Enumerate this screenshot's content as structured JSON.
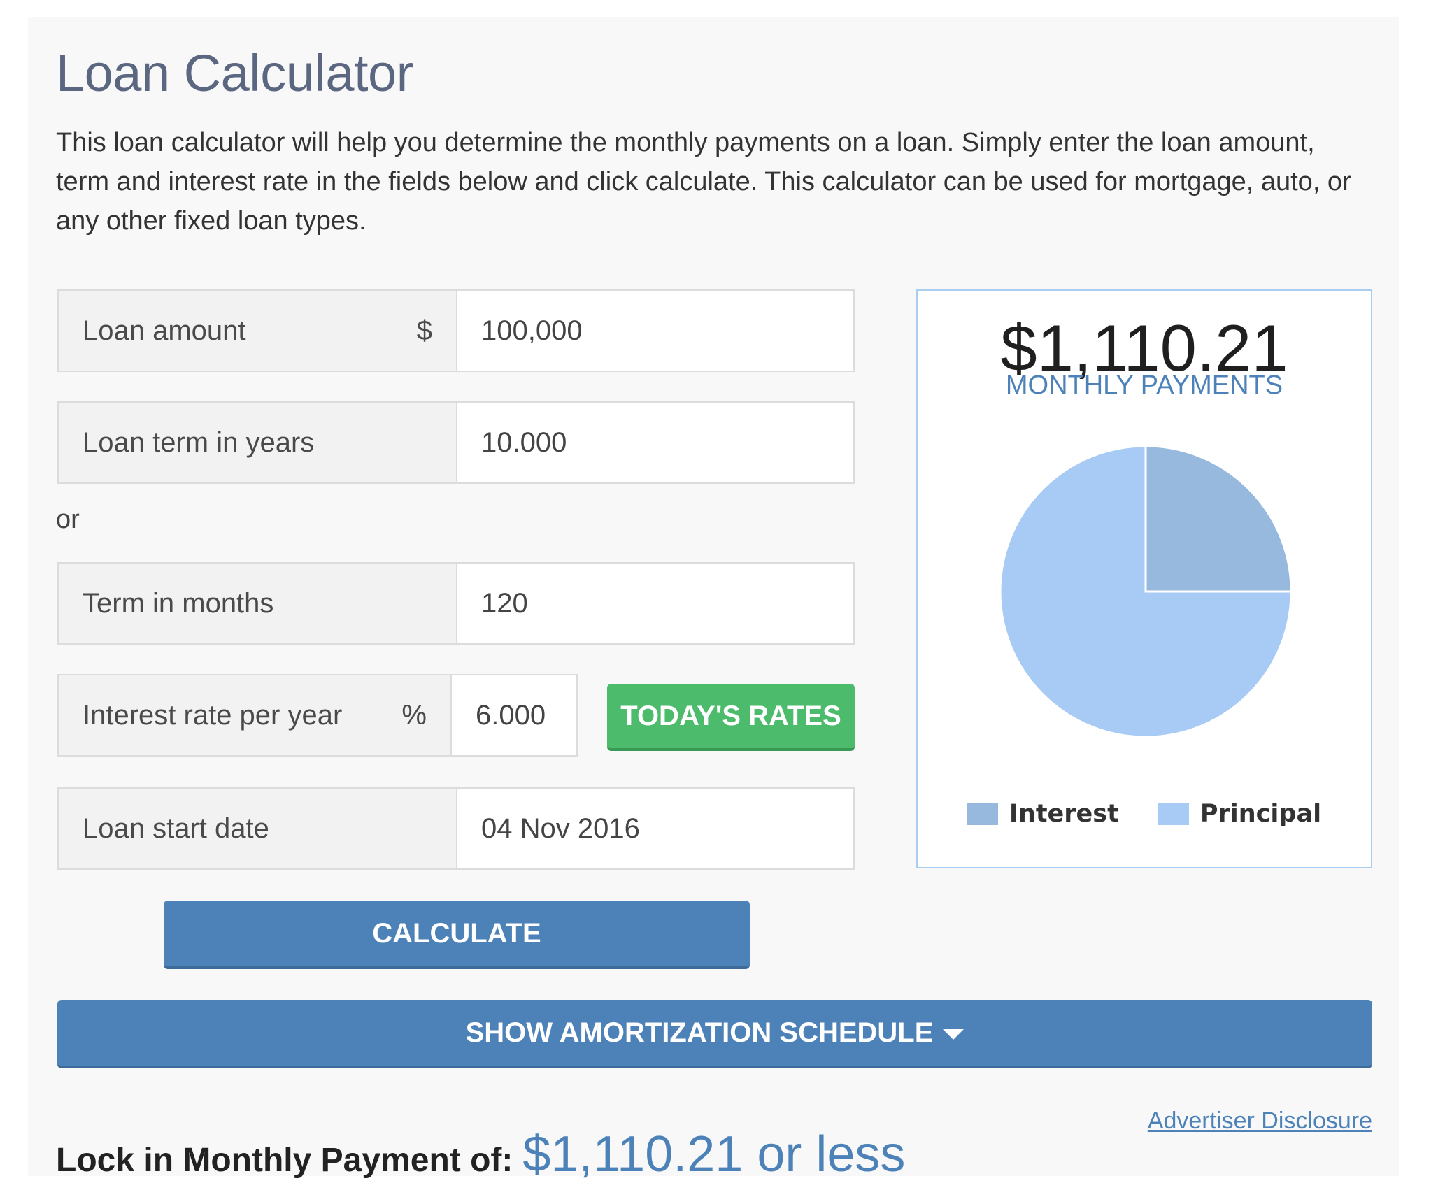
{
  "title": "Loan Calculator",
  "intro": "This loan calculator will help you determine the monthly payments on a loan. Simply enter the loan amount, term and interest rate in the fields below and click calculate. This calculator can be used for mortgage, auto, or any other fixed loan types.",
  "fields": {
    "loan_amount": {
      "label": "Loan amount",
      "unit": "$",
      "value": "100,000"
    },
    "loan_term_years": {
      "label": "Loan term in years",
      "value": "10.000"
    },
    "or_text": "or",
    "term_months": {
      "label": "Term in months",
      "value": "120"
    },
    "interest_rate": {
      "label": "Interest rate per year",
      "unit": "%",
      "value": "6.000"
    },
    "start_date": {
      "label": "Loan start date",
      "value": "04 Nov 2016"
    }
  },
  "buttons": {
    "todays_rates": "TODAY'S RATES",
    "calculate": "CALCULATE",
    "amortization": "SHOW AMORTIZATION SCHEDULE"
  },
  "result": {
    "amount": "$1,110.21",
    "caption": "MONTHLY PAYMENTS"
  },
  "chart_data": {
    "type": "pie",
    "labels": [
      "Interest",
      "Principal"
    ],
    "values": [
      25,
      75
    ],
    "colors": [
      "#97b9de",
      "#a7cbf4"
    ],
    "legend": "bottom"
  },
  "disclosure": "Advertiser Disclosure",
  "lock": {
    "label": "Lock in Monthly Payment of:",
    "value": "$1,110.21 or less"
  }
}
